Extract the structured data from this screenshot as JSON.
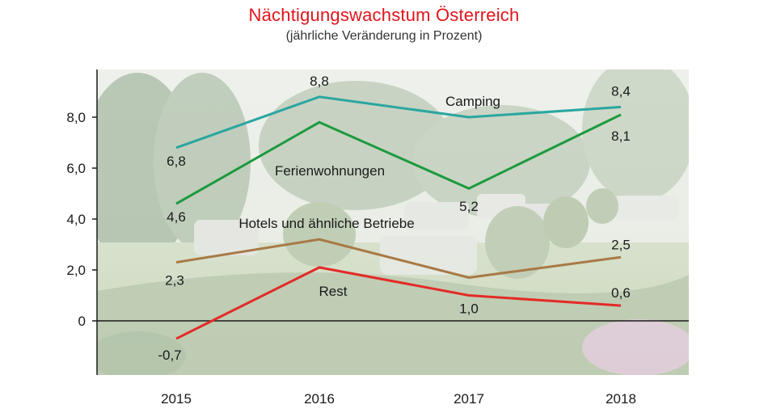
{
  "title": "Nächtigungswachstum Österreich",
  "subtitle": "(jährliche Veränderung in Prozent)",
  "chart_data": {
    "type": "line",
    "title": "Nächtigungswachstum Österreich",
    "subtitle": "(jährliche Veränderung in Prozent)",
    "categories": [
      "2015",
      "2016",
      "2017",
      "2018"
    ],
    "ylim": [
      -2,
      9.8
    ],
    "yticks": [
      0,
      2,
      4,
      6,
      8
    ],
    "ytick_labels": [
      "0",
      "2,0",
      "4,0",
      "6,0",
      "8,0"
    ],
    "grid": false,
    "series": [
      {
        "name": "Camping",
        "color": "#2aa6a0",
        "values": [
          6.8,
          8.8,
          8.0,
          8.4
        ],
        "data_labels": [
          "6,8",
          "8,8",
          "",
          "8,4"
        ]
      },
      {
        "name": "Ferienwohnungen",
        "color": "#1c9a3e",
        "values": [
          4.6,
          7.8,
          5.2,
          8.1
        ],
        "data_labels": [
          "4,6",
          "",
          "5,2",
          "8,1"
        ]
      },
      {
        "name": "Hotels und ähnliche Betriebe",
        "color": "#a87945",
        "values": [
          2.3,
          3.2,
          1.7,
          2.5
        ],
        "data_labels": [
          "2,3",
          "",
          "",
          "2,5"
        ]
      },
      {
        "name": "Rest",
        "color": "#e32b26",
        "values": [
          -0.7,
          2.1,
          1.0,
          0.6
        ],
        "data_labels": [
          "-0,7",
          "",
          "1,0",
          "0,6"
        ]
      }
    ],
    "background": "photo of a campground with caravans and trees (faded)"
  }
}
